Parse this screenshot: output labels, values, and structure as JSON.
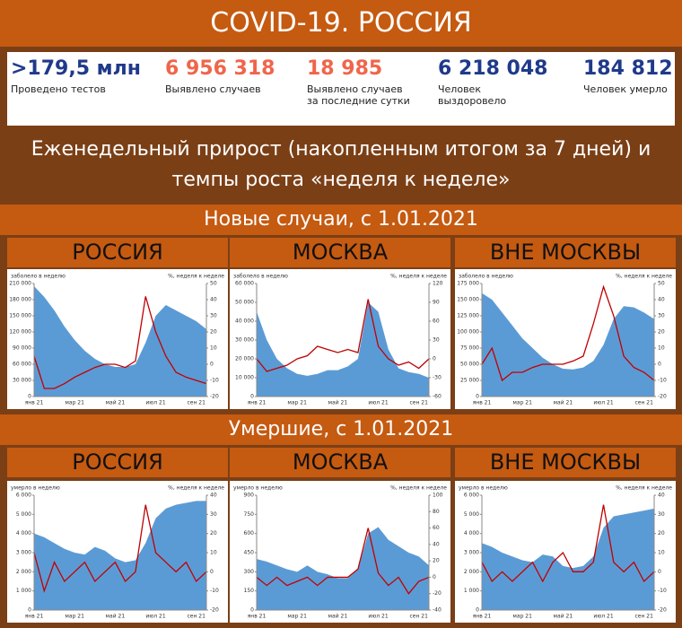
{
  "header": {
    "title": "COVID-19. РОССИЯ"
  },
  "stats": [
    {
      "value": ">179,5 млн",
      "label": "Проведено тестов",
      "color": "#1f3a8a"
    },
    {
      "value": "6 956 318",
      "label": "Выявлено случаев",
      "color": "#f0654a"
    },
    {
      "value": "18 985",
      "label": "Выявлено случаев за последние сутки",
      "color": "#f0654a"
    },
    {
      "value": "6 218 048",
      "label": "Человек выздоровело",
      "color": "#1f3a8a"
    },
    {
      "value": "184 812",
      "label": "Человек умерло",
      "color": "#1f3a8a"
    }
  ],
  "subtitle": "Еженедельный прирост (накопленным итогом за 7 дней) и темпы роста «неделя к неделе»",
  "sections": [
    {
      "title": "Новые случаи, с 1.01.2021"
    },
    {
      "title": "Умершие, с 1.01.2021"
    }
  ],
  "chart_data": [
    {
      "type": "combo",
      "title": "РОССИЯ",
      "ylabel": "заболело в неделю",
      "y2label": "%, неделя к неделе",
      "categories": [
        "янв 21",
        null,
        null,
        null,
        "мар 21",
        null,
        null,
        null,
        "май 21",
        null,
        null,
        null,
        "июл 21",
        null,
        null,
        null,
        "сен 21",
        null
      ],
      "ylim": [
        0,
        210000
      ],
      "yticks": [
        0,
        {
          "value": 30000,
          "label": "30 000"
        },
        {
          "value": 60000,
          "label": "60 000"
        },
        {
          "value": 90000,
          "label": "90 000"
        },
        {
          "value": 120000,
          "label": "120 000"
        },
        {
          "value": 150000,
          "label": "150 000"
        },
        {
          "value": 180000,
          "label": "180 000"
        },
        {
          "value": 210000,
          "label": "210 000"
        }
      ],
      "y2lim": [
        -20,
        50
      ],
      "y2ticks": [
        -20,
        -10,
        0,
        10,
        20,
        30,
        40,
        50
      ],
      "series": [
        {
          "type": "area",
          "color": "#5b9bd5",
          "values": [
            205000,
            185000,
            160000,
            130000,
            105000,
            85000,
            70000,
            60000,
            55000,
            55000,
            60000,
            100000,
            150000,
            170000,
            160000,
            150000,
            140000,
            125000
          ]
        },
        {
          "type": "line",
          "axis": "y2",
          "color": "#c00000",
          "values": [
            5,
            -15,
            -15,
            -12,
            -8,
            -5,
            -2,
            0,
            0,
            -2,
            2,
            42,
            20,
            5,
            -5,
            -8,
            -10,
            -12
          ]
        }
      ]
    },
    {
      "type": "combo",
      "title": "МОСКВА",
      "ylabel": "заболело в неделю",
      "y2label": "%, неделя к неделе",
      "categories": [
        "янв 21",
        null,
        null,
        null,
        "мар 21",
        null,
        null,
        null,
        "май 21",
        null,
        null,
        null,
        "июл 21",
        null,
        null,
        null,
        "сен 21",
        null
      ],
      "ylim": [
        0,
        60000
      ],
      "yticks": [
        0,
        {
          "value": 10000,
          "label": "10 000"
        },
        {
          "value": 20000,
          "label": "20 000"
        },
        {
          "value": 30000,
          "label": "30 000"
        },
        {
          "value": 40000,
          "label": "40 000"
        },
        {
          "value": 50000,
          "label": "50 000"
        },
        {
          "value": 60000,
          "label": "60 000"
        }
      ],
      "y2lim": [
        -60,
        120
      ],
      "y2ticks": [
        -60,
        -30,
        0,
        30,
        60,
        90,
        120
      ],
      "series": [
        {
          "type": "area",
          "color": "#5b9bd5",
          "values": [
            45000,
            30000,
            20000,
            15000,
            12000,
            11000,
            12000,
            14000,
            14000,
            16000,
            20000,
            50000,
            45000,
            25000,
            15000,
            13000,
            12000,
            10000
          ]
        },
        {
          "type": "line",
          "axis": "y2",
          "color": "#c00000",
          "values": [
            0,
            -20,
            -15,
            -10,
            0,
            5,
            20,
            15,
            10,
            15,
            10,
            95,
            20,
            0,
            -10,
            -5,
            -15,
            0
          ]
        }
      ]
    },
    {
      "type": "combo",
      "title": "ВНЕ МОСКВЫ",
      "ylabel": "заболело в неделю",
      "y2label": "%, неделя к неделе",
      "categories": [
        "янв 21",
        null,
        null,
        null,
        "мар 21",
        null,
        null,
        null,
        "май 21",
        null,
        null,
        null,
        "июл 21",
        null,
        null,
        null,
        "сен 21",
        null
      ],
      "ylim": [
        0,
        175000
      ],
      "yticks": [
        0,
        {
          "value": 25000,
          "label": "25 000"
        },
        {
          "value": 50000,
          "label": "50 000"
        },
        {
          "value": 75000,
          "label": "75 000"
        },
        {
          "value": 100000,
          "label": "100 000"
        },
        {
          "value": 125000,
          "label": "125 000"
        },
        {
          "value": 150000,
          "label": "150 000"
        },
        {
          "value": 175000,
          "label": "175 000"
        }
      ],
      "y2lim": [
        -20,
        50
      ],
      "y2ticks": [
        -20,
        -10,
        0,
        10,
        20,
        30,
        40,
        50
      ],
      "series": [
        {
          "type": "area",
          "color": "#5b9bd5",
          "values": [
            160000,
            150000,
            130000,
            110000,
            90000,
            75000,
            60000,
            50000,
            43000,
            42000,
            45000,
            55000,
            80000,
            120000,
            140000,
            138000,
            130000,
            120000
          ]
        },
        {
          "type": "line",
          "axis": "y2",
          "color": "#c00000",
          "values": [
            0,
            10,
            -10,
            -5,
            -5,
            -2,
            0,
            0,
            0,
            2,
            5,
            25,
            48,
            30,
            5,
            -2,
            -5,
            -10
          ]
        }
      ]
    },
    {
      "type": "combo",
      "title": "РОССИЯ",
      "ylabel": "умерло в неделю",
      "y2label": "%, неделя к неделе",
      "categories": [
        "янв 21",
        null,
        null,
        null,
        "мар 21",
        null,
        null,
        null,
        "май 21",
        null,
        null,
        null,
        "июл 21",
        null,
        null,
        null,
        "сен 21",
        null
      ],
      "ylim": [
        0,
        6000
      ],
      "yticks": [
        0,
        {
          "value": 1000,
          "label": "1 000"
        },
        {
          "value": 2000,
          "label": "2 000"
        },
        {
          "value": 3000,
          "label": "3 000"
        },
        {
          "value": 4000,
          "label": "4 000"
        },
        {
          "value": 5000,
          "label": "5 000"
        },
        {
          "value": 6000,
          "label": "6 000"
        }
      ],
      "y2lim": [
        -20,
        40
      ],
      "y2ticks": [
        -20,
        -10,
        0,
        10,
        20,
        30,
        40
      ],
      "series": [
        {
          "type": "area",
          "color": "#5b9bd5",
          "values": [
            4000,
            3800,
            3500,
            3200,
            3000,
            2900,
            3300,
            3100,
            2700,
            2500,
            2600,
            3500,
            4800,
            5300,
            5500,
            5600,
            5700,
            5700
          ]
        },
        {
          "type": "line",
          "axis": "y2",
          "color": "#c00000",
          "values": [
            10,
            -10,
            5,
            -5,
            0,
            5,
            -5,
            0,
            5,
            -5,
            0,
            35,
            10,
            5,
            0,
            5,
            -5,
            0
          ]
        }
      ]
    },
    {
      "type": "combo",
      "title": "МОСКВА",
      "ylabel": "умерло в неделю",
      "y2label": "%, неделя к неделе",
      "categories": [
        "янв 21",
        null,
        null,
        null,
        "мар 21",
        null,
        null,
        null,
        "май 21",
        null,
        null,
        null,
        "июл 21",
        null,
        null,
        null,
        "сен 21",
        null
      ],
      "ylim": [
        0,
        900
      ],
      "yticks": [
        0,
        150,
        300,
        450,
        600,
        750,
        900
      ],
      "y2lim": [
        -40,
        100
      ],
      "y2ticks": [
        -40,
        -20,
        0,
        20,
        40,
        60,
        80,
        100
      ],
      "series": [
        {
          "type": "area",
          "color": "#5b9bd5",
          "values": [
            400,
            380,
            350,
            320,
            300,
            350,
            300,
            280,
            250,
            250,
            320,
            600,
            650,
            550,
            500,
            450,
            420,
            350
          ]
        },
        {
          "type": "line",
          "axis": "y2",
          "color": "#c00000",
          "values": [
            0,
            -10,
            0,
            -10,
            -5,
            0,
            -10,
            0,
            0,
            0,
            10,
            60,
            5,
            -10,
            0,
            -20,
            -5,
            0
          ]
        }
      ]
    },
    {
      "type": "combo",
      "title": "ВНЕ МОСКВЫ",
      "ylabel": "умерло в неделю",
      "y2label": "%, неделя к неделе",
      "categories": [
        "янв 21",
        null,
        null,
        null,
        "мар 21",
        null,
        null,
        null,
        "май 21",
        null,
        null,
        null,
        "июл 21",
        null,
        null,
        null,
        "сен 21",
        null
      ],
      "ylim": [
        0,
        6000
      ],
      "yticks": [
        0,
        {
          "value": 1000,
          "label": "1 000"
        },
        {
          "value": 2000,
          "label": "2 000"
        },
        {
          "value": 3000,
          "label": "3 000"
        },
        {
          "value": 4000,
          "label": "4 000"
        },
        {
          "value": 5000,
          "label": "5 000"
        },
        {
          "value": 6000,
          "label": "6 000"
        }
      ],
      "y2lim": [
        -20,
        40
      ],
      "y2ticks": [
        -20,
        -10,
        0,
        10,
        20,
        30,
        40
      ],
      "series": [
        {
          "type": "area",
          "color": "#5b9bd5",
          "values": [
            3500,
            3300,
            3000,
            2800,
            2600,
            2500,
            2900,
            2800,
            2300,
            2200,
            2300,
            2800,
            4300,
            4900,
            5000,
            5100,
            5200,
            5300
          ]
        },
        {
          "type": "line",
          "axis": "y2",
          "color": "#c00000",
          "values": [
            5,
            -5,
            0,
            -5,
            0,
            5,
            -5,
            5,
            10,
            0,
            0,
            5,
            35,
            5,
            0,
            5,
            -5,
            0
          ]
        }
      ]
    }
  ]
}
